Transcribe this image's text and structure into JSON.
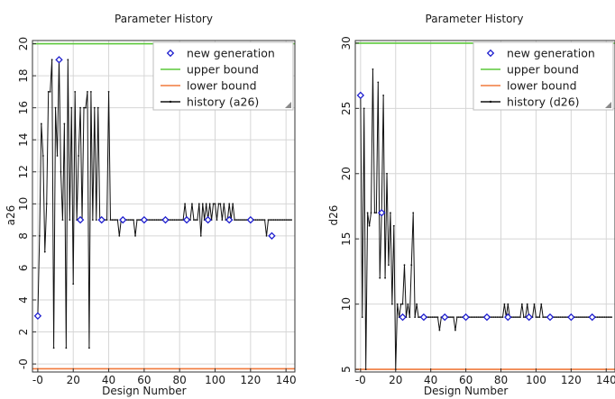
{
  "chart_data": [
    {
      "type": "line",
      "title": "Parameter History",
      "xlabel": "Design Number",
      "ylabel": "a26",
      "xlim": [
        -3,
        145
      ],
      "ylim": [
        -0.5,
        20.2
      ],
      "xticks": [
        0,
        20,
        40,
        60,
        80,
        100,
        120,
        140
      ],
      "xtick_labels": [
        "-0",
        "20",
        "40",
        "60",
        "80",
        "100",
        "120",
        "140"
      ],
      "yticks": [
        0,
        2,
        4,
        6,
        8,
        10,
        12,
        14,
        16,
        18,
        20
      ],
      "ytick_labels": [
        "-0",
        "2",
        "4",
        "6",
        "8",
        "10",
        "12",
        "14",
        "16",
        "18",
        "20"
      ],
      "grid": true,
      "legend_position": "top-right",
      "colors": {
        "new_generation": "#1f1fcf",
        "upper_bound": "#5cc83a",
        "lower_bound": "#f07a3c",
        "history": "#111111"
      },
      "series": [
        {
          "name": "new generation",
          "kind": "marker",
          "x": [
            0,
            12,
            24,
            36,
            48,
            60,
            72,
            84,
            96,
            108,
            120,
            132
          ],
          "y": [
            3,
            19,
            9,
            9,
            9,
            9,
            9,
            9,
            9,
            9,
            9,
            8
          ]
        },
        {
          "name": "upper bound",
          "kind": "line",
          "x": [
            -3,
            145
          ],
          "y": [
            20,
            20
          ]
        },
        {
          "name": "lower bound",
          "kind": "line",
          "x": [
            -3,
            145
          ],
          "y": [
            -0.3,
            -0.3
          ]
        },
        {
          "name": "history (a26)",
          "kind": "line",
          "x": [
            0,
            1,
            2,
            3,
            4,
            5,
            6,
            7,
            8,
            9,
            10,
            11,
            12,
            13,
            14,
            15,
            16,
            17,
            18,
            19,
            20,
            21,
            22,
            23,
            24,
            25,
            26,
            27,
            28,
            29,
            30,
            31,
            32,
            33,
            34,
            35,
            36,
            37,
            38,
            39,
            40,
            41,
            42,
            43,
            44,
            45,
            46,
            47,
            48,
            49,
            50,
            51,
            52,
            53,
            54,
            55,
            56,
            57,
            58,
            59,
            60,
            61,
            62,
            63,
            64,
            65,
            66,
            67,
            68,
            69,
            70,
            71,
            72,
            73,
            74,
            75,
            76,
            77,
            78,
            79,
            80,
            81,
            82,
            83,
            84,
            85,
            86,
            87,
            88,
            89,
            90,
            91,
            92,
            93,
            94,
            95,
            96,
            97,
            98,
            99,
            100,
            101,
            102,
            103,
            104,
            105,
            106,
            107,
            108,
            109,
            110,
            111,
            112,
            113,
            114,
            115,
            116,
            117,
            118,
            119,
            120,
            121,
            122,
            123,
            124,
            125,
            126,
            127,
            128,
            129,
            130,
            131,
            132,
            133,
            134,
            135,
            136,
            137,
            138,
            139,
            140,
            141,
            142,
            143
          ],
          "y": [
            3,
            8,
            15,
            13,
            7,
            10,
            17,
            17,
            19,
            1,
            16,
            13,
            19,
            12,
            9,
            15,
            1,
            19,
            9,
            16,
            5,
            17,
            9,
            13,
            16,
            9,
            16,
            16,
            17,
            1,
            17,
            9,
            16,
            9,
            16,
            9,
            9,
            9,
            9,
            9,
            17,
            9,
            9,
            9,
            9,
            9,
            8,
            9,
            9,
            9,
            9,
            9,
            9,
            9,
            9,
            8,
            9,
            9,
            9,
            9,
            9,
            9,
            9,
            9,
            9,
            9,
            9,
            9,
            9,
            9,
            9,
            9,
            9,
            9,
            9,
            9,
            9,
            9,
            9,
            9,
            9,
            9,
            9,
            10,
            9,
            9,
            9,
            10,
            9,
            9,
            9,
            10,
            8,
            10,
            9,
            10,
            9,
            10,
            9,
            10,
            10,
            9,
            10,
            10,
            9,
            10,
            9,
            9,
            10,
            9,
            10,
            9,
            9,
            9,
            9,
            9,
            9,
            9,
            9,
            9,
            9,
            9,
            9,
            9,
            9,
            9,
            9,
            9,
            9,
            8,
            9,
            9,
            9,
            9,
            9,
            9,
            9,
            9,
            9,
            9,
            9,
            9,
            9,
            9
          ]
        }
      ]
    },
    {
      "type": "line",
      "title": "Parameter History",
      "xlabel": "Design Number",
      "ylabel": "d26",
      "xlim": [
        -3,
        145
      ],
      "ylim": [
        4.8,
        30.2
      ],
      "xticks": [
        0,
        20,
        40,
        60,
        80,
        100,
        120,
        140
      ],
      "xtick_labels": [
        "-0",
        "20",
        "40",
        "60",
        "80",
        "100",
        "120",
        "140"
      ],
      "yticks": [
        5,
        10,
        15,
        20,
        25,
        30
      ],
      "ytick_labels": [
        "5",
        "10",
        "15",
        "20",
        "25",
        "30"
      ],
      "grid": true,
      "legend_position": "top-right",
      "colors": {
        "new_generation": "#1f1fcf",
        "upper_bound": "#5cc83a",
        "lower_bound": "#f07a3c",
        "history": "#111111"
      },
      "series": [
        {
          "name": "new generation",
          "kind": "marker",
          "x": [
            0,
            12,
            24,
            36,
            48,
            60,
            72,
            84,
            96,
            108,
            120,
            132
          ],
          "y": [
            26,
            17,
            9,
            9,
            9,
            9,
            9,
            9,
            9,
            9,
            9,
            9
          ]
        },
        {
          "name": "upper bound",
          "kind": "line",
          "x": [
            -3,
            145
          ],
          "y": [
            30,
            30
          ]
        },
        {
          "name": "lower bound",
          "kind": "line",
          "x": [
            -3,
            145
          ],
          "y": [
            5,
            5
          ]
        },
        {
          "name": "history (d26)",
          "kind": "line",
          "x": [
            0,
            1,
            2,
            3,
            4,
            5,
            6,
            7,
            8,
            9,
            10,
            11,
            12,
            13,
            14,
            15,
            16,
            17,
            18,
            19,
            20,
            21,
            22,
            23,
            24,
            25,
            26,
            27,
            28,
            29,
            30,
            31,
            32,
            33,
            34,
            35,
            36,
            37,
            38,
            39,
            40,
            41,
            42,
            43,
            44,
            45,
            46,
            47,
            48,
            49,
            50,
            51,
            52,
            53,
            54,
            55,
            56,
            57,
            58,
            59,
            60,
            61,
            62,
            63,
            64,
            65,
            66,
            67,
            68,
            69,
            70,
            71,
            72,
            73,
            74,
            75,
            76,
            77,
            78,
            79,
            80,
            81,
            82,
            83,
            84,
            85,
            86,
            87,
            88,
            89,
            90,
            91,
            92,
            93,
            94,
            95,
            96,
            97,
            98,
            99,
            100,
            101,
            102,
            103,
            104,
            105,
            106,
            107,
            108,
            109,
            110,
            111,
            112,
            113,
            114,
            115,
            116,
            117,
            118,
            119,
            120,
            121,
            122,
            123,
            124,
            125,
            126,
            127,
            128,
            129,
            130,
            131,
            132,
            133,
            134,
            135,
            136,
            137,
            138,
            139,
            140,
            141,
            142,
            143
          ],
          "y": [
            26,
            9,
            25,
            5,
            17,
            16,
            17,
            28,
            17,
            17,
            27,
            12,
            17,
            26,
            12,
            20,
            13,
            17,
            10,
            16,
            5,
            10,
            9,
            10,
            10,
            13,
            9,
            10,
            9,
            13,
            17,
            9,
            10,
            9,
            9,
            9,
            9,
            9,
            9,
            9,
            9,
            9,
            9,
            9,
            9,
            8,
            9,
            9,
            9,
            9,
            9,
            9,
            9,
            9,
            8,
            9,
            9,
            9,
            9,
            9,
            9,
            9,
            9,
            9,
            9,
            9,
            9,
            9,
            9,
            9,
            9,
            9,
            9,
            9,
            9,
            9,
            9,
            9,
            9,
            9,
            9,
            9,
            10,
            9,
            10,
            9,
            9,
            9,
            9,
            9,
            9,
            9,
            10,
            9,
            9,
            10,
            9,
            9,
            9,
            10,
            9,
            9,
            9,
            10,
            9,
            9,
            9,
            9,
            9,
            9,
            9,
            9,
            9,
            9,
            9,
            9,
            9,
            9,
            9,
            9,
            9,
            9,
            9,
            9,
            9,
            9,
            9,
            9,
            9,
            9,
            9,
            9,
            9,
            9,
            9,
            9,
            9,
            9,
            9,
            9,
            9,
            9,
            9,
            9
          ]
        }
      ]
    }
  ]
}
